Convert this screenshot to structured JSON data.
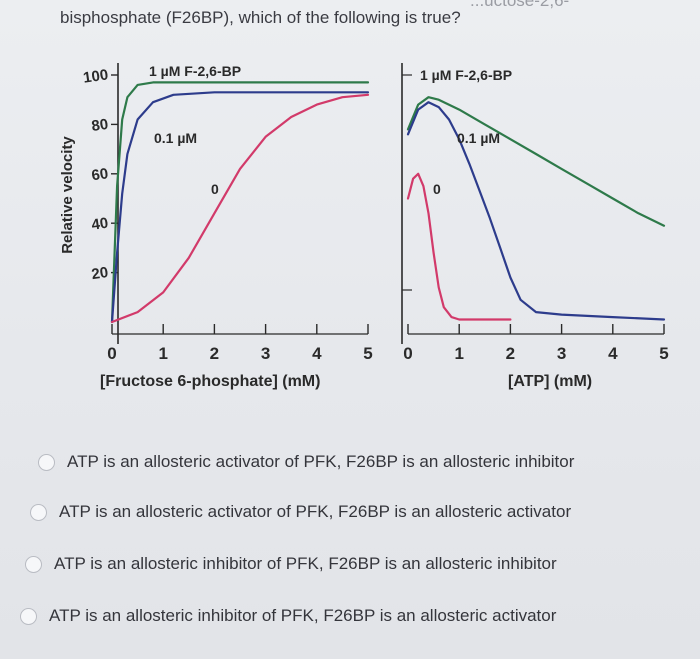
{
  "question": {
    "text": "bisphosphate (F26BP), which of the following is true?",
    "cut_text": "...uctose-2,6-"
  },
  "chart_data": [
    {
      "type": "line",
      "ylabel": "Relative velocity",
      "xlabel": "[Fructose 6-phosphate] (mM)",
      "xlim": [
        0,
        5
      ],
      "ylim": [
        0,
        100
      ],
      "x_ticks": [
        "0",
        "1",
        "2",
        "3",
        "4",
        "5"
      ],
      "y_ticks": [
        "20",
        "40",
        "60",
        "80",
        "100"
      ],
      "grid": false,
      "series": [
        {
          "name": "1 µM F-2,6-BP",
          "color": "#2e7a4a",
          "points": [
            [
              0,
              0
            ],
            [
              0.1,
              55
            ],
            [
              0.2,
              82
            ],
            [
              0.3,
              91
            ],
            [
              0.5,
              96
            ],
            [
              0.8,
              97
            ],
            [
              1.5,
              97
            ],
            [
              3,
              97
            ],
            [
              5,
              97
            ]
          ]
        },
        {
          "name": "0.1 µM",
          "color": "#2d3c8c",
          "points": [
            [
              0,
              0
            ],
            [
              0.1,
              28
            ],
            [
              0.2,
              52
            ],
            [
              0.3,
              68
            ],
            [
              0.5,
              82
            ],
            [
              0.8,
              89
            ],
            [
              1.2,
              92
            ],
            [
              2,
              93
            ],
            [
              3,
              93
            ],
            [
              4,
              93
            ],
            [
              5,
              93
            ]
          ]
        },
        {
          "name": "0",
          "color": "#d23a6a",
          "points": [
            [
              0,
              0
            ],
            [
              0.5,
              4
            ],
            [
              1,
              12
            ],
            [
              1.5,
              26
            ],
            [
              2,
              44
            ],
            [
              2.5,
              62
            ],
            [
              3,
              75
            ],
            [
              3.5,
              83
            ],
            [
              4,
              88
            ],
            [
              4.5,
              91
            ],
            [
              5,
              92
            ]
          ]
        }
      ]
    },
    {
      "type": "line",
      "xlabel": "[ATP] (mM)",
      "xlim": [
        0,
        5
      ],
      "ylim": [
        0,
        100
      ],
      "x_ticks": [
        "0",
        "1",
        "2",
        "3",
        "4",
        "5"
      ],
      "grid": false,
      "series": [
        {
          "name": "1 µM F-2,6-BP",
          "color": "#2e7a4a",
          "points": [
            [
              0,
              78
            ],
            [
              0.2,
              88
            ],
            [
              0.4,
              91
            ],
            [
              0.6,
              90
            ],
            [
              1,
              86
            ],
            [
              1.5,
              80
            ],
            [
              2,
              74
            ],
            [
              2.5,
              68
            ],
            [
              3,
              62
            ],
            [
              3.5,
              56
            ],
            [
              4,
              50
            ],
            [
              4.5,
              44
            ],
            [
              5,
              39
            ]
          ]
        },
        {
          "name": "0.1 µM",
          "color": "#2d3c8c",
          "points": [
            [
              0,
              76
            ],
            [
              0.2,
              86
            ],
            [
              0.4,
              89
            ],
            [
              0.6,
              87
            ],
            [
              0.8,
              82
            ],
            [
              1,
              74
            ],
            [
              1.2,
              64
            ],
            [
              1.4,
              53
            ],
            [
              1.6,
              42
            ],
            [
              1.8,
              30
            ],
            [
              2,
              18
            ],
            [
              2.2,
              9
            ],
            [
              2.5,
              4
            ],
            [
              3,
              3
            ],
            [
              4,
              2
            ],
            [
              5,
              1
            ]
          ]
        },
        {
          "name": "0",
          "color": "#d23a6a",
          "points": [
            [
              0,
              50
            ],
            [
              0.1,
              58
            ],
            [
              0.2,
              60
            ],
            [
              0.3,
              55
            ],
            [
              0.4,
              44
            ],
            [
              0.5,
              28
            ],
            [
              0.6,
              14
            ],
            [
              0.7,
              6
            ],
            [
              0.85,
              2
            ],
            [
              1,
              1
            ],
            [
              1.4,
              1
            ],
            [
              2,
              1
            ]
          ]
        }
      ]
    }
  ],
  "answers": [
    {
      "label": "ATP is an allosteric activator of PFK, F26BP is an allosteric inhibitor"
    },
    {
      "label": "ATP is an allosteric activator of PFK, F26BP is an allosteric activator"
    },
    {
      "label": "ATP is an allosteric inhibitor of PFK, F26BP is an allosteric inhibitor"
    },
    {
      "label": "ATP is an allosteric inhibitor of PFK, F26BP is an allosteric activator"
    }
  ]
}
